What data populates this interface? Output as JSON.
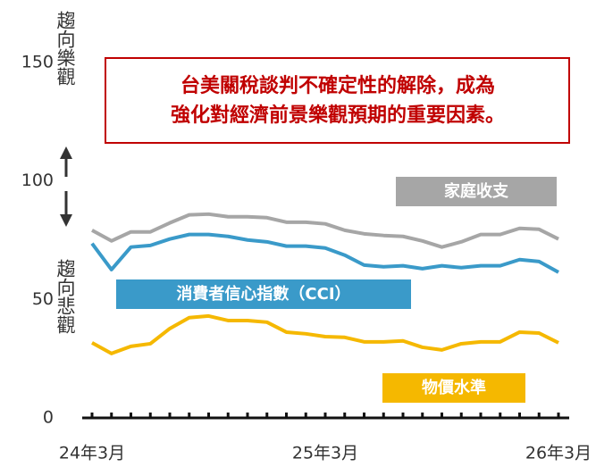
{
  "chart_data": {
    "type": "line",
    "annotations": [
      "趨向樂觀",
      "趨向悲觀",
      "台美關稅談判不確定性的解除，成為",
      "強化對經濟前景樂觀預期的重要因素。"
    ],
    "categories": [
      "24年3月",
      null,
      null,
      null,
      null,
      null,
      null,
      null,
      null,
      null,
      null,
      null,
      "25年3月",
      null,
      null,
      null,
      null,
      null,
      null,
      null,
      null,
      null,
      null,
      null,
      "26年3月"
    ],
    "ylim": [
      0,
      150
    ],
    "yticks": [
      0,
      50,
      100,
      150
    ],
    "series": [
      {
        "name": "家庭收支",
        "color": "#a6a6a6",
        "values": [
          79.2,
          74.7,
          78.5,
          78.5,
          82.3,
          85.7,
          86.0,
          84.9,
          84.9,
          84.5,
          82.6,
          82.6,
          81.9,
          79.2,
          77.7,
          77.0,
          76.6,
          74.7,
          72.1,
          74.3,
          77.4,
          77.4,
          80.0,
          79.6,
          75.5
        ]
      },
      {
        "name": "消費者信心指數（CCI）",
        "color": "#3a9ac9",
        "values": [
          73.6,
          62.6,
          72.1,
          72.8,
          75.5,
          77.4,
          77.4,
          76.6,
          75.1,
          74.3,
          72.5,
          72.5,
          71.7,
          68.7,
          64.5,
          63.8,
          64.2,
          63.0,
          64.2,
          63.4,
          64.2,
          64.2,
          66.8,
          66.0,
          61.5
        ]
      },
      {
        "name": "物價水準",
        "color": "#f5b800",
        "values": [
          31.7,
          27.2,
          30.2,
          31.3,
          37.7,
          42.3,
          43.0,
          41.1,
          41.1,
          40.4,
          36.2,
          35.5,
          34.3,
          34.0,
          32.1,
          32.1,
          32.5,
          29.8,
          28.7,
          31.3,
          32.1,
          32.1,
          36.2,
          35.8,
          31.7
        ]
      }
    ]
  }
}
